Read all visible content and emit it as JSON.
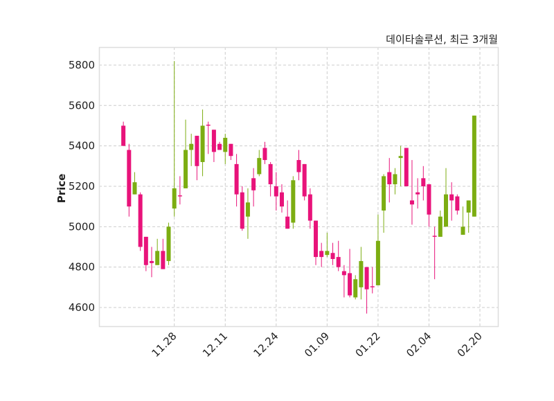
{
  "chart_data": {
    "type": "candlestick",
    "title": "데이타솔루션, 최근 3개월",
    "xlabel": "",
    "ylabel": "Price",
    "ylim": [
      4504,
      5889
    ],
    "xlim": [
      -4.3,
      66.3
    ],
    "grid": true,
    "yticks": [
      4600,
      4800,
      5000,
      5200,
      5400,
      5600,
      5800
    ],
    "xticks": [
      {
        "index": 9,
        "label": "11.28"
      },
      {
        "index": 18,
        "label": "12.11"
      },
      {
        "index": 27,
        "label": "12.24"
      },
      {
        "index": 36,
        "label": "01.09"
      },
      {
        "index": 45,
        "label": "01.22"
      },
      {
        "index": 54,
        "label": "02.04"
      },
      {
        "index": 63,
        "label": "02.20"
      }
    ],
    "colors": {
      "up": "#7cad12",
      "down": "#e8137a",
      "grid": "#cccccc",
      "frame": "#dddddd"
    },
    "ohlc_fields": [
      "open",
      "high",
      "low",
      "close"
    ],
    "candles": [
      [
        5500,
        5520,
        5400,
        5400
      ],
      [
        5380,
        5410,
        5050,
        5100
      ],
      [
        5160,
        5270,
        5160,
        5220
      ],
      [
        5160,
        5170,
        4880,
        4900
      ],
      [
        4950,
        4950,
        4780,
        4810
      ],
      [
        4830,
        4900,
        4750,
        4820
      ],
      [
        4810,
        4940,
        4810,
        4880
      ],
      [
        4880,
        4940,
        4790,
        4790
      ],
      [
        4830,
        5020,
        4810,
        5000
      ],
      [
        5090,
        5820,
        5050,
        5190
      ],
      [
        5155,
        5250,
        5110,
        5150
      ],
      [
        5190,
        5530,
        5190,
        5380
      ],
      [
        5380,
        5460,
        5300,
        5410
      ],
      [
        5450,
        5450,
        5230,
        5300
      ],
      [
        5320,
        5580,
        5250,
        5500
      ],
      [
        5505,
        5520,
        5360,
        5500
      ],
      [
        5480,
        5480,
        5320,
        5370
      ],
      [
        5410,
        5420,
        5380,
        5380
      ],
      [
        5370,
        5460,
        5310,
        5440
      ],
      [
        5410,
        5410,
        5330,
        5350
      ],
      [
        5310,
        5360,
        5100,
        5160
      ],
      [
        5170,
        5200,
        4980,
        4990
      ],
      [
        5050,
        5190,
        4940,
        5120
      ],
      [
        5240,
        5290,
        5100,
        5180
      ],
      [
        5260,
        5380,
        5250,
        5340
      ],
      [
        5390,
        5420,
        5310,
        5330
      ],
      [
        5310,
        5320,
        5150,
        5210
      ],
      [
        5200,
        5270,
        5080,
        5150
      ],
      [
        5170,
        5210,
        5070,
        5100
      ],
      [
        5050,
        5130,
        4990,
        4990
      ],
      [
        5020,
        5250,
        4990,
        5230
      ],
      [
        5330,
        5380,
        5230,
        5270
      ],
      [
        5310,
        5310,
        5130,
        5150
      ],
      [
        5160,
        5190,
        4990,
        5030
      ],
      [
        5030,
        5030,
        4810,
        4850
      ],
      [
        4880,
        4920,
        4800,
        4850
      ],
      [
        4860,
        4970,
        4850,
        4880
      ],
      [
        4870,
        4920,
        4810,
        4840
      ],
      [
        4850,
        4930,
        4780,
        4800
      ],
      [
        4780,
        4810,
        4650,
        4760
      ],
      [
        4770,
        4890,
        4650,
        4660
      ],
      [
        4650,
        4760,
        4640,
        4740
      ],
      [
        4700,
        4900,
        4640,
        4830
      ],
      [
        4800,
        4800,
        4570,
        4690
      ],
      [
        4705,
        4800,
        4670,
        4700
      ],
      [
        4710,
        5060,
        4710,
        4930
      ],
      [
        5080,
        5260,
        4970,
        5250
      ],
      [
        5270,
        5340,
        5120,
        5210
      ],
      [
        5210,
        5290,
        5160,
        5260
      ],
      [
        5340,
        5400,
        5200,
        5350
      ],
      [
        5390,
        5390,
        5200,
        5200
      ],
      [
        5130,
        5330,
        5010,
        5110
      ],
      [
        5170,
        5240,
        5090,
        5160
      ],
      [
        5240,
        5300,
        5130,
        5200
      ],
      [
        5210,
        5210,
        5000,
        5060
      ],
      [
        4955,
        5000,
        4740,
        4950
      ],
      [
        4950,
        5080,
        4950,
        5050
      ],
      [
        5000,
        5290,
        5000,
        5160
      ],
      [
        5160,
        5220,
        5030,
        5130
      ],
      [
        5150,
        5160,
        5060,
        5080
      ],
      [
        4960,
        5100,
        4960,
        5000
      ],
      [
        5070,
        5130,
        4970,
        5130
      ],
      [
        5050,
        5550,
        5050,
        5550
      ]
    ]
  }
}
